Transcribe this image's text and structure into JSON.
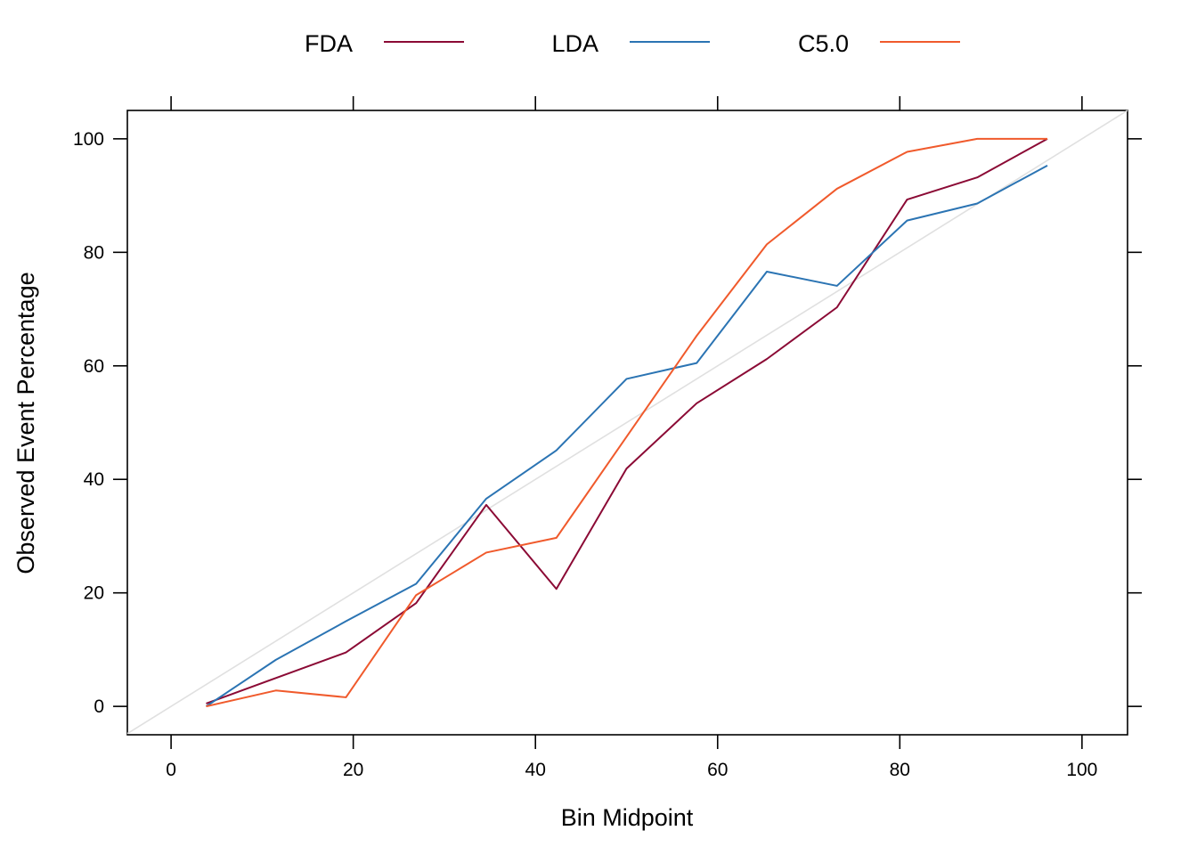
{
  "chart_data": {
    "type": "line",
    "title": "",
    "xlabel": "Bin Midpoint",
    "ylabel": "Observed Event Percentage",
    "xlim": [
      -4.8,
      105
    ],
    "ylim": [
      -5,
      105
    ],
    "xticks": [
      "0",
      "20",
      "40",
      "60",
      "80",
      "100"
    ],
    "yticks": [
      "0",
      "20",
      "40",
      "60",
      "80",
      "100"
    ],
    "reference_line": {
      "from": [
        -4.8,
        -4.8
      ],
      "to": [
        105,
        105
      ],
      "color": "#e0e0e0"
    },
    "legend_position": "top",
    "grid": false,
    "x": [
      3.85,
      11.5,
      19.2,
      26.9,
      34.6,
      42.3,
      50.0,
      57.7,
      65.4,
      73.1,
      80.8,
      88.5,
      96.2
    ],
    "series": [
      {
        "name": "FDA",
        "color": "#8b0a35",
        "values": [
          0.5,
          5.0,
          9.5,
          18.2,
          35.5,
          20.7,
          41.9,
          53.4,
          61.2,
          70.3,
          89.3,
          93.2,
          100
        ]
      },
      {
        "name": "LDA",
        "color": "#2b74b3",
        "values": [
          0.0,
          8.2,
          15.0,
          21.6,
          36.6,
          45.1,
          57.7,
          60.5,
          76.6,
          74.1,
          85.6,
          88.6,
          95.3
        ]
      },
      {
        "name": "C5.0",
        "color": "#f05a2c",
        "values": [
          0.0,
          2.8,
          1.6,
          19.6,
          27.1,
          29.7,
          47.5,
          65.3,
          81.4,
          91.2,
          97.7,
          100,
          100
        ]
      }
    ]
  }
}
